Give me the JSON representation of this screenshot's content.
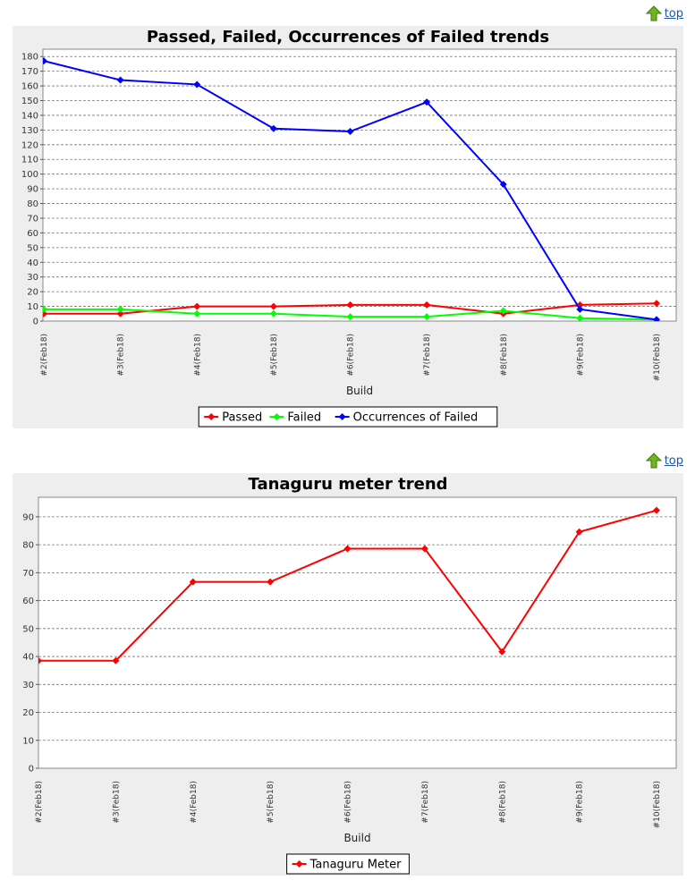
{
  "top_link": {
    "label": "top"
  },
  "charts": [
    {
      "id": "trend",
      "type": "line",
      "title": "Passed, Failed, Occurrences of Failed trends",
      "xlabel": "Build",
      "categories": [
        "#2(Feb18)",
        "#3(Feb18)",
        "#4(Feb18)",
        "#5(Feb18)",
        "#6(Feb18)",
        "#7(Feb18)",
        "#8(Feb18)",
        "#9(Feb18)",
        "#10(Feb18)"
      ],
      "ylim": [
        0,
        185
      ],
      "yticks": [
        0,
        10,
        20,
        30,
        40,
        50,
        60,
        70,
        80,
        90,
        100,
        110,
        120,
        130,
        140,
        150,
        160,
        170,
        180
      ],
      "grid": true,
      "legend_position": "bottom",
      "series": [
        {
          "name": "Passed",
          "color": "#ff0000",
          "values": [
            5,
            5,
            10,
            10,
            11,
            11,
            5,
            11,
            12
          ]
        },
        {
          "name": "Failed",
          "color": "#00ff00",
          "values": [
            8,
            8,
            5,
            5,
            3,
            3,
            7,
            2,
            1
          ]
        },
        {
          "name": "Occurrences of Failed",
          "color": "#0000ff",
          "values": [
            177,
            164,
            161,
            131,
            129,
            149,
            93,
            8,
            1
          ]
        }
      ]
    },
    {
      "id": "meter",
      "type": "line",
      "title": "Tanaguru meter trend",
      "xlabel": "Build",
      "categories": [
        "#2(Feb18)",
        "#3(Feb18)",
        "#4(Feb18)",
        "#5(Feb18)",
        "#6(Feb18)",
        "#7(Feb18)",
        "#8(Feb18)",
        "#9(Feb18)",
        "#10(Feb18)"
      ],
      "ylim": [
        0,
        97
      ],
      "yticks": [
        0,
        10,
        20,
        30,
        40,
        50,
        60,
        70,
        80,
        90
      ],
      "grid": true,
      "legend_position": "bottom",
      "series": [
        {
          "name": "Tanaguru Meter",
          "color": "#ff0000",
          "values": [
            38.5,
            38.5,
            66.7,
            66.7,
            78.6,
            78.6,
            41.7,
            84.6,
            92.3
          ]
        }
      ]
    }
  ]
}
